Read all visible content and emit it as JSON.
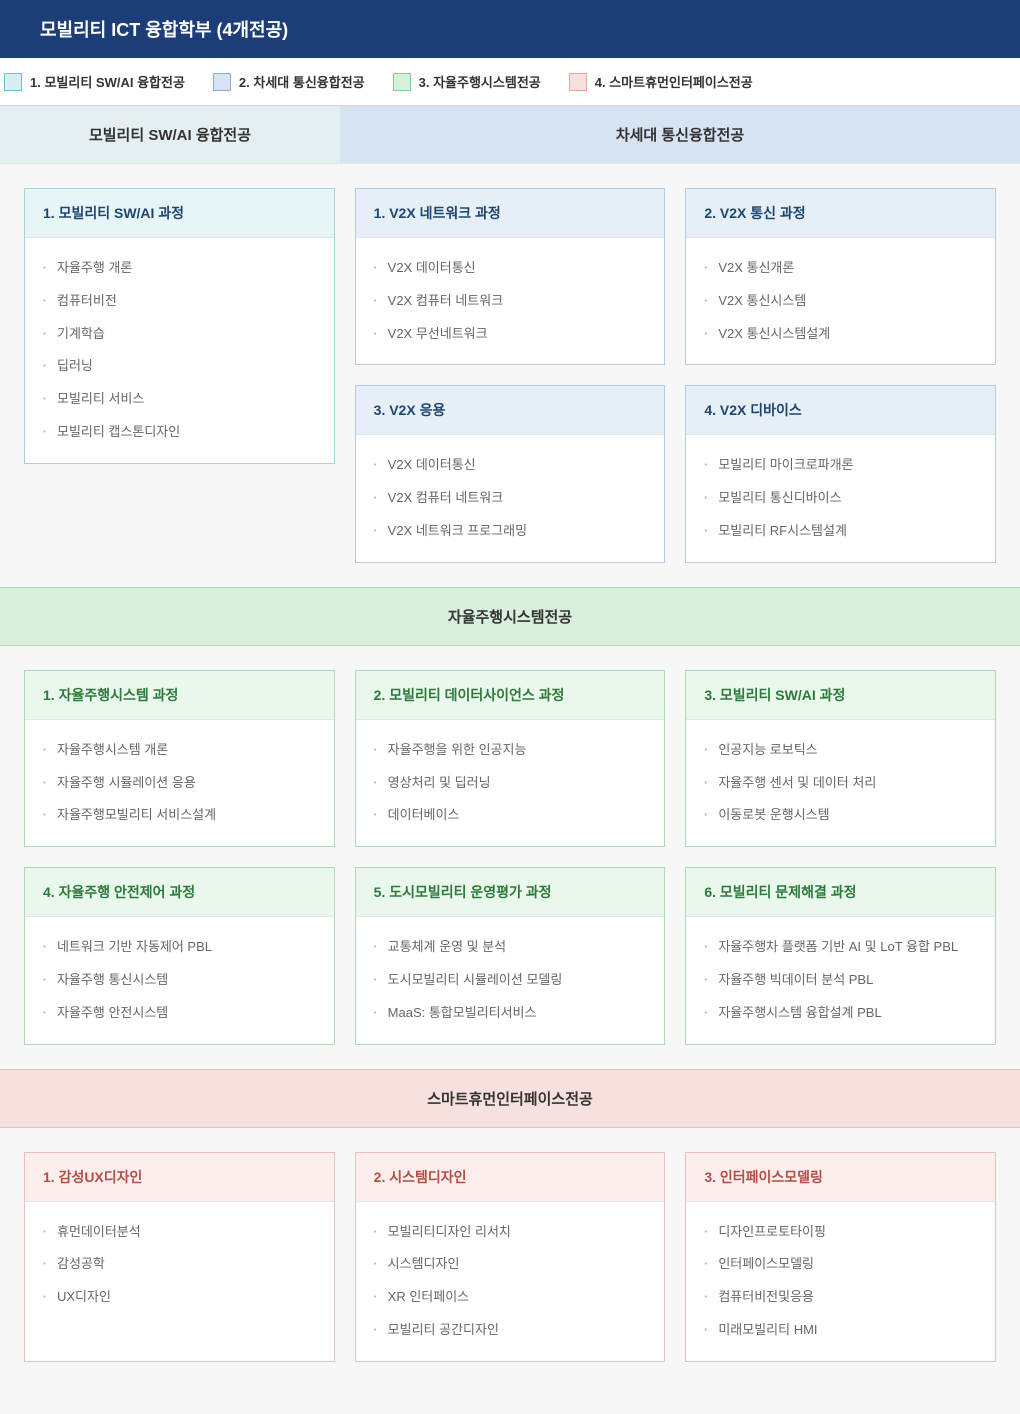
{
  "colors": {
    "header_bg": "#1c3d78",
    "major1_bg": "#d9eef2",
    "major1_border": "#a4d4de",
    "major1_title": "#1c466e",
    "major2_bg": "#d7e3f0",
    "major2_border": "#b3cbe3",
    "major2_title": "#1c466e",
    "major3_bg": "#d9efdc",
    "major3_border": "#a9dcb0",
    "major3_title": "#2c7a3a",
    "major4_bg": "#f7e1de",
    "major4_border": "#e9c0bb",
    "major4_title": "#b14f47",
    "body_bg": "#f7f7f7",
    "text_muted": "#666"
  },
  "header": {
    "title": "모빌리티 ICT 융합학부 (4개전공)"
  },
  "legend": [
    {
      "label": "1. 모빌리티 SW/AI 융합전공",
      "swatch_bg": "#d9eef2",
      "swatch_border": "#68c0d0"
    },
    {
      "label": "2. 차세대 통신융합전공",
      "swatch_bg": "#d7e3f0",
      "swatch_border": "#8aaed6"
    },
    {
      "label": "3. 자율주행시스템전공",
      "swatch_bg": "#d9efdc",
      "swatch_border": "#7fcf8d"
    },
    {
      "label": "4. 스마트휴먼인터페이스전공",
      "swatch_bg": "#f7e1de",
      "swatch_border": "#e0a69f"
    }
  ],
  "majors": [
    {
      "id": "major1",
      "name": "모빌리티 SW/AI 융합전공",
      "header_bg": "#e3eff0",
      "card_border": "#a4d4de",
      "card_title_bg": "#e8f5f7",
      "card_title_color": "#1c466e",
      "span": 1,
      "cards": [
        {
          "title": "1. 모빌리티 SW/AI 과정",
          "items": [
            "자율주행 개론",
            "컴퓨터비전",
            "기계학습",
            "딥러닝",
            "모빌리티 서비스",
            "모빌리티 캡스톤디자인"
          ]
        }
      ]
    },
    {
      "id": "major2",
      "name": "차세대 통신융합전공",
      "header_bg": "#d7e3f0",
      "card_border": "#b3cbe3",
      "card_title_bg": "#e6eef7",
      "card_title_color": "#1c466e",
      "span": 2,
      "cards": [
        {
          "title": "1. V2X 네트워크 과정",
          "items": [
            "V2X 데이터통신",
            "V2X 컴퓨터 네트워크",
            "V2X 무선네트워크"
          ]
        },
        {
          "title": "2. V2X 통신 과정",
          "items": [
            "V2X 통신개론",
            "V2X 통신시스템",
            "V2X 통신시스템설계"
          ]
        },
        {
          "title": "3. V2X 응용",
          "items": [
            "V2X 데이터통신",
            "V2X 컴퓨터 네트워크",
            "V2X 네트워크 프로그래밍"
          ]
        },
        {
          "title": "4. V2X 디바이스",
          "items": [
            "모빌리티 마이크로파개론",
            "모빌리티 통신디바이스",
            "모빌리티 RF시스템설계"
          ]
        }
      ]
    },
    {
      "id": "major3",
      "name": "자율주행시스템전공",
      "header_bg": "#d9efdc",
      "card_border": "#a9dcb0",
      "card_title_bg": "#eaf7ec",
      "card_title_color": "#2c7a3a",
      "span": 3,
      "full": true,
      "cards": [
        {
          "title": "1. 자율주행시스템 과정",
          "items": [
            "자율주행시스템 개론",
            "자율주행 시뮬레이션 응용",
            "자율주행모빌리티 서비스설계"
          ]
        },
        {
          "title": "2. 모빌리티 데이터사이언스 과정",
          "items": [
            "자율주행을 위한 인공지능",
            "영상처리 및 딥러닝",
            "데이터베이스"
          ]
        },
        {
          "title": "3. 모빌리티 SW/AI 과정",
          "items": [
            "인공지능 로보틱스",
            "자율주행 센서 및 데이터 처리",
            "이동로봇 운행시스템"
          ]
        },
        {
          "title": "4. 자율주행 안전제어 과정",
          "items": [
            "네트워크 기반 자동제어 PBL",
            "자율주행 통신시스템",
            "자율주행 안전시스템"
          ]
        },
        {
          "title": "5. 도시모빌리티 운영평가 과정",
          "items": [
            "교통체계 운영 및 분석",
            "도시모빌리티 시뮬레이션 모델링",
            "MaaS: 통합모빌리티서비스"
          ]
        },
        {
          "title": "6. 모빌리티 문제해결 과정",
          "items": [
            "자율주행차 플랫폼 기반 AI 및 LoT 융합 PBL",
            "자율주행 빅데이터 분석 PBL",
            "자율주행시스템 융합설계 PBL"
          ]
        }
      ]
    },
    {
      "id": "major4",
      "name": "스마트휴먼인터페이스전공",
      "header_bg": "#f7e1de",
      "card_border": "#e9c0bb",
      "card_title_bg": "#fbeeec",
      "card_title_color": "#b14f47",
      "span": 3,
      "full": true,
      "cards": [
        {
          "title": "1. 감성UX디자인",
          "items": [
            "휴먼데이터분석",
            "감성공학",
            "UX디자인"
          ]
        },
        {
          "title": "2. 시스템디자인",
          "items": [
            "모빌리티디자인 리서치",
            "시스템디자인",
            "XR 인터페이스",
            "모빌리티 공간디자인"
          ]
        },
        {
          "title": "3. 인터페이스모델링",
          "items": [
            "디자인프로토타이핑",
            "인터페이스모델링",
            "컴퓨터비전및응용",
            "미래모빌리티 HMI"
          ]
        }
      ]
    }
  ]
}
